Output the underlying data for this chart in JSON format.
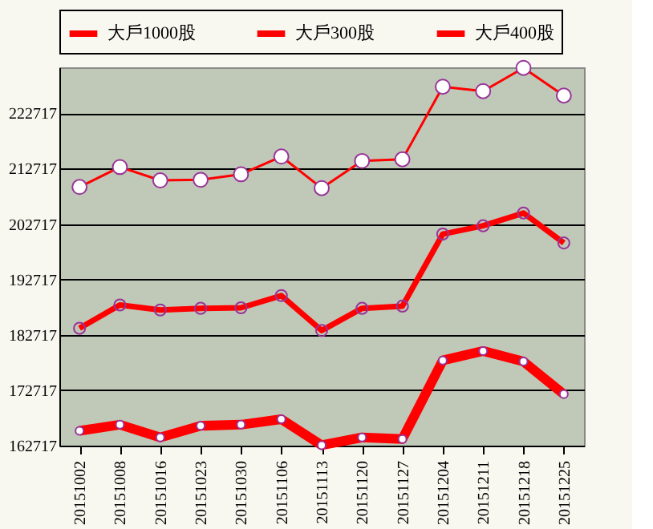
{
  "chart_data": {
    "type": "line",
    "categories": [
      "20151002",
      "20151008",
      "20151016",
      "20151023",
      "20151030",
      "20151106",
      "20151113",
      "20151120",
      "20151127",
      "20151204",
      "20151211",
      "20151218",
      "20151225"
    ],
    "series": [
      {
        "name": "大戶1000股",
        "color": "#ff0000",
        "values": [
          165400,
          166500,
          164200,
          166300,
          166500,
          167500,
          162800,
          164200,
          163900,
          178100,
          179800,
          177900,
          172000
        ]
      },
      {
        "name": "大戶300股",
        "color": "#ff0000",
        "values": [
          183900,
          188100,
          187200,
          187500,
          187600,
          189800,
          183500,
          187500,
          187900,
          200900,
          202400,
          204700,
          199300
        ]
      },
      {
        "name": "大戶400股",
        "color": "#ff0000",
        "values": [
          209400,
          213000,
          210600,
          210700,
          211700,
          214900,
          209200,
          214100,
          214400,
          227500,
          226700,
          230900,
          225900
        ]
      }
    ],
    "ylim": [
      162717,
      231000
    ],
    "yticks": [
      162717,
      172717,
      182717,
      192717,
      202717,
      212717,
      222717
    ],
    "grid": "y",
    "legend": "top",
    "marker": "circle",
    "line_style": "solid"
  }
}
